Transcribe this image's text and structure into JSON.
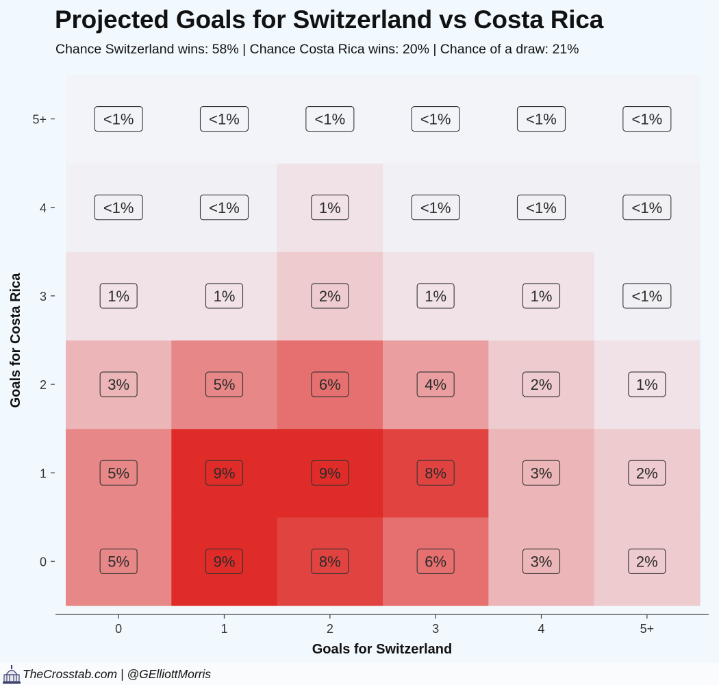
{
  "chart_data": {
    "type": "heatmap",
    "title": "Projected Goals for Switzerland vs Costa Rica",
    "subtitle": "Chance Switzerland wins: 58% | Chance Costa Rica wins: 20% | Chance of a draw: 21%",
    "xlabel": "Goals for Switzerland",
    "ylabel": "Goals for Costa Rica",
    "x_categories": [
      "0",
      "1",
      "2",
      "3",
      "4",
      "5+"
    ],
    "y_categories": [
      "0",
      "1",
      "2",
      "3",
      "4",
      "5+"
    ],
    "color_scale": {
      "low": "#f2f9fe",
      "high": "#df2c28"
    },
    "cells": [
      {
        "x": "0",
        "y": "0",
        "value": 5,
        "label": "5%"
      },
      {
        "x": "1",
        "y": "0",
        "value": 9,
        "label": "9%"
      },
      {
        "x": "2",
        "y": "0",
        "value": 8,
        "label": "8%"
      },
      {
        "x": "3",
        "y": "0",
        "value": 6,
        "label": "6%"
      },
      {
        "x": "4",
        "y": "0",
        "value": 3,
        "label": "3%"
      },
      {
        "x": "5+",
        "y": "0",
        "value": 2,
        "label": "2%"
      },
      {
        "x": "0",
        "y": "1",
        "value": 5,
        "label": "5%"
      },
      {
        "x": "1",
        "y": "1",
        "value": 9,
        "label": "9%"
      },
      {
        "x": "2",
        "y": "1",
        "value": 9,
        "label": "9%"
      },
      {
        "x": "3",
        "y": "1",
        "value": 8,
        "label": "8%"
      },
      {
        "x": "4",
        "y": "1",
        "value": 3,
        "label": "3%"
      },
      {
        "x": "5+",
        "y": "1",
        "value": 2,
        "label": "2%"
      },
      {
        "x": "0",
        "y": "2",
        "value": 3,
        "label": "3%"
      },
      {
        "x": "1",
        "y": "2",
        "value": 5,
        "label": "5%"
      },
      {
        "x": "2",
        "y": "2",
        "value": 6,
        "label": "6%"
      },
      {
        "x": "3",
        "y": "2",
        "value": 4,
        "label": "4%"
      },
      {
        "x": "4",
        "y": "2",
        "value": 2,
        "label": "2%"
      },
      {
        "x": "5+",
        "y": "2",
        "value": 1,
        "label": "1%"
      },
      {
        "x": "0",
        "y": "3",
        "value": 1,
        "label": "1%"
      },
      {
        "x": "1",
        "y": "3",
        "value": 1,
        "label": "1%"
      },
      {
        "x": "2",
        "y": "3",
        "value": 2,
        "label": "2%"
      },
      {
        "x": "3",
        "y": "3",
        "value": 1,
        "label": "1%"
      },
      {
        "x": "4",
        "y": "3",
        "value": 1,
        "label": "1%"
      },
      {
        "x": "5+",
        "y": "3",
        "value": 0.4,
        "label": "<1%"
      },
      {
        "x": "0",
        "y": "4",
        "value": 0.4,
        "label": "<1%"
      },
      {
        "x": "1",
        "y": "4",
        "value": 0.4,
        "label": "<1%"
      },
      {
        "x": "2",
        "y": "4",
        "value": 1,
        "label": "1%"
      },
      {
        "x": "3",
        "y": "4",
        "value": 0.4,
        "label": "<1%"
      },
      {
        "x": "4",
        "y": "4",
        "value": 0.4,
        "label": "<1%"
      },
      {
        "x": "5+",
        "y": "4",
        "value": 0.4,
        "label": "<1%"
      },
      {
        "x": "0",
        "y": "5+",
        "value": 0.2,
        "label": "<1%"
      },
      {
        "x": "1",
        "y": "5+",
        "value": 0.2,
        "label": "<1%"
      },
      {
        "x": "2",
        "y": "5+",
        "value": 0.2,
        "label": "<1%"
      },
      {
        "x": "3",
        "y": "5+",
        "value": 0.2,
        "label": "<1%"
      },
      {
        "x": "4",
        "y": "5+",
        "value": 0.2,
        "label": "<1%"
      },
      {
        "x": "5+",
        "y": "5+",
        "value": 0.2,
        "label": "<1%"
      }
    ]
  },
  "footer": {
    "credit": "TheCrosstab.com | @GElliottMorris",
    "logo_icon": "capitol-dome-icon"
  }
}
